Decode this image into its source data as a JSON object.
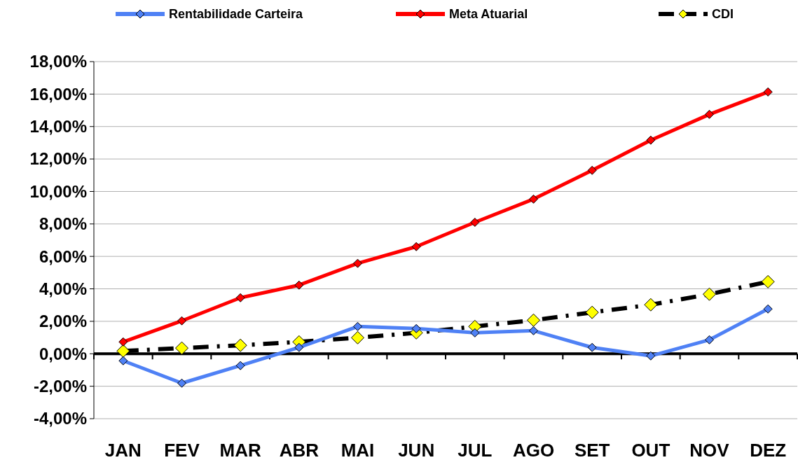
{
  "chart_data": {
    "type": "line",
    "categories": [
      "JAN",
      "FEV",
      "MAR",
      "ABR",
      "MAI",
      "JUN",
      "JUL",
      "AGO",
      "SET",
      "OUT",
      "NOV",
      "DEZ"
    ],
    "series": [
      {
        "name": "Rentabilidade Carteira",
        "color": "#4f81f5",
        "values": [
          -0.43,
          -1.81,
          -0.73,
          0.39,
          1.68,
          1.55,
          1.29,
          1.42,
          0.39,
          -0.13,
          0.86,
          2.76
        ]
      },
      {
        "name": "Meta Atuarial",
        "color": "#ff0000",
        "values": [
          0.73,
          2.03,
          3.45,
          4.23,
          5.57,
          6.6,
          8.1,
          9.53,
          11.3,
          13.16,
          14.75,
          16.13
        ]
      },
      {
        "name": "CDI",
        "color": "#000000",
        "colors": [
          "#ffff00",
          "#ffff00",
          "#ffff00",
          "#ffff00",
          "#ffff00",
          "#ffff00",
          "#ffff00",
          "#ffff00",
          "#ffff00",
          "#ffff00",
          "#ffff00",
          "#ffff00"
        ],
        "line_style": "dashed",
        "values": [
          0.17,
          0.35,
          0.52,
          0.73,
          0.99,
          1.29,
          1.68,
          2.07,
          2.55,
          3.02,
          3.67,
          4.44
        ]
      }
    ],
    "ylim": [
      -4,
      18
    ],
    "yticks": [
      {
        "value": -4,
        "label": "-4,00%"
      },
      {
        "value": -2,
        "label": "-2,00%"
      },
      {
        "value": 0,
        "label": "0,00%"
      },
      {
        "value": 2,
        "label": "2,00%"
      },
      {
        "value": 4,
        "label": "4,00%"
      },
      {
        "value": 6,
        "label": "6,00%"
      },
      {
        "value": 8,
        "label": "8,00%"
      },
      {
        "value": 10,
        "label": "10,00%"
      },
      {
        "value": 12,
        "label": "12,00%"
      },
      {
        "value": 14,
        "label": "14,00%"
      },
      {
        "value": 16,
        "label": "16,00%"
      },
      {
        "value": 18,
        "label": "18,00%"
      }
    ],
    "grid": "y",
    "legend": "top",
    "marker": "diamond"
  }
}
